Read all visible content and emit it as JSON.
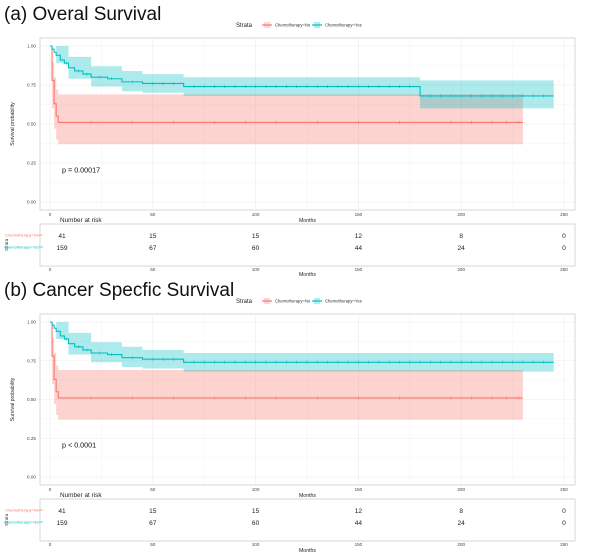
{
  "figure": {
    "panels": [
      {
        "title": "(a) Overal Survival",
        "legend_title": "Strata",
        "legend_items": [
          "Chemotherapy=No",
          "Chemotherapy=Yes"
        ],
        "ylabel": "Survival probability",
        "xlabel": "Months",
        "pvalue": "p = 0.00017",
        "risk_title": "Number at risk",
        "risk_xlabel": "Months",
        "risk_groups": [
          "Chemotherapy=No",
          "Chemotherapy=Yes"
        ],
        "risk_table": [
          [
            "41",
            "15",
            "15",
            "12",
            "8",
            "0"
          ],
          [
            "159",
            "67",
            "60",
            "44",
            "24",
            "0"
          ]
        ]
      },
      {
        "title": "(b) Cancer Specfic Survival",
        "legend_title": "Strata",
        "legend_items": [
          "Chemotherapy=No",
          "Chemotherapy=Yes"
        ],
        "ylabel": "Survival probability",
        "xlabel": "Months",
        "pvalue": "p < 0.0001",
        "risk_title": "Number at risk",
        "risk_xlabel": "Months",
        "risk_groups": [
          "Chemotherapy=No",
          "Chemotherapy=Yes"
        ],
        "risk_table": [
          [
            "41",
            "15",
            "15",
            "12",
            "8",
            "0"
          ],
          [
            "159",
            "67",
            "60",
            "44",
            "24",
            "0"
          ]
        ]
      }
    ]
  },
  "chart_data": [
    {
      "type": "line",
      "title": "(a) Overal Survival",
      "xlabel": "Months",
      "ylabel": "Survival probability",
      "xlim": [
        0,
        250
      ],
      "ylim": [
        0,
        1
      ],
      "xticks": [
        "0",
        "50",
        "100",
        "150",
        "200",
        "250"
      ],
      "yticks": [
        "0.00",
        "0.25",
        "0.50",
        "0.75",
        "1.00"
      ],
      "grid": true,
      "legend_position": "top",
      "colors": {
        "Chemotherapy=No": "#F8766D",
        "Chemotherapy=Yes": "#00BFC4"
      },
      "series": [
        {
          "name": "Chemotherapy=No",
          "step_x": [
            0,
            1,
            2,
            3,
            4,
            230
          ],
          "step_y": [
            1.0,
            0.78,
            0.63,
            0.55,
            0.51,
            0.51
          ],
          "ci_x": [
            0,
            1,
            2,
            3,
            4,
            230
          ],
          "ci_upper": [
            1.0,
            0.9,
            0.8,
            0.72,
            0.69,
            0.69
          ],
          "ci_lower": [
            1.0,
            0.6,
            0.47,
            0.4,
            0.37,
            0.37
          ],
          "censor_x": [
            20,
            40,
            60,
            80,
            95,
            110,
            130,
            150,
            170,
            195,
            205,
            215,
            222,
            228
          ]
        },
        {
          "name": "Chemotherapy=Yes",
          "step_x": [
            0,
            1,
            2,
            3,
            5,
            7,
            9,
            12,
            16,
            20,
            28,
            35,
            45,
            65,
            180,
            245
          ],
          "step_y": [
            1.0,
            0.98,
            0.96,
            0.94,
            0.91,
            0.89,
            0.86,
            0.84,
            0.82,
            0.8,
            0.79,
            0.77,
            0.76,
            0.74,
            0.68,
            0.68
          ],
          "ci_x": [
            0,
            3,
            9,
            20,
            35,
            45,
            65,
            180,
            245
          ],
          "ci_upper": [
            1.0,
            1.0,
            0.93,
            0.87,
            0.84,
            0.82,
            0.8,
            0.78,
            0.78
          ],
          "ci_lower": [
            1.0,
            0.89,
            0.79,
            0.74,
            0.71,
            0.7,
            0.68,
            0.6,
            0.6
          ],
          "censor_x": [
            8,
            14,
            18,
            24,
            30,
            40,
            50,
            55,
            60,
            70,
            75,
            80,
            85,
            90,
            95,
            100,
            105,
            110,
            115,
            120,
            125,
            130,
            135,
            140,
            145,
            150,
            155,
            160,
            165,
            170,
            175,
            185,
            190,
            195,
            200,
            205,
            210,
            215,
            220,
            225,
            230,
            235,
            240
          ]
        }
      ]
    },
    {
      "type": "line",
      "title": "(b) Cancer Specfic Survival",
      "xlabel": "Months",
      "ylabel": "Survival probability",
      "xlim": [
        0,
        250
      ],
      "ylim": [
        0,
        1
      ],
      "xticks": [
        "0",
        "50",
        "100",
        "150",
        "200",
        "250"
      ],
      "yticks": [
        "0.00",
        "0.25",
        "0.50",
        "0.75",
        "1.00"
      ],
      "grid": true,
      "legend_position": "top",
      "colors": {
        "Chemotherapy=No": "#F8766D",
        "Chemotherapy=Yes": "#00BFC4"
      },
      "series": [
        {
          "name": "Chemotherapy=No",
          "step_x": [
            0,
            1,
            2,
            3,
            4,
            230
          ],
          "step_y": [
            1.0,
            0.78,
            0.63,
            0.55,
            0.51,
            0.51
          ],
          "ci_x": [
            0,
            1,
            2,
            3,
            4,
            230
          ],
          "ci_upper": [
            1.0,
            0.9,
            0.8,
            0.72,
            0.69,
            0.69
          ],
          "ci_lower": [
            1.0,
            0.6,
            0.47,
            0.4,
            0.37,
            0.37
          ],
          "censor_x": [
            20,
            40,
            60,
            80,
            95,
            110,
            130,
            150,
            170,
            195,
            205,
            215,
            222,
            228
          ]
        },
        {
          "name": "Chemotherapy=Yes",
          "step_x": [
            0,
            1,
            2,
            3,
            5,
            7,
            9,
            12,
            16,
            20,
            28,
            35,
            45,
            65,
            245
          ],
          "step_y": [
            1.0,
            0.98,
            0.96,
            0.94,
            0.91,
            0.89,
            0.86,
            0.84,
            0.82,
            0.8,
            0.79,
            0.77,
            0.76,
            0.74,
            0.74
          ],
          "ci_x": [
            0,
            3,
            9,
            20,
            35,
            45,
            65,
            245
          ],
          "ci_upper": [
            1.0,
            1.0,
            0.93,
            0.87,
            0.84,
            0.82,
            0.8,
            0.8
          ],
          "ci_lower": [
            1.0,
            0.89,
            0.79,
            0.74,
            0.71,
            0.7,
            0.68,
            0.68
          ],
          "censor_x": [
            8,
            14,
            18,
            24,
            30,
            40,
            50,
            55,
            60,
            70,
            75,
            80,
            85,
            90,
            95,
            100,
            105,
            110,
            115,
            120,
            125,
            130,
            135,
            140,
            145,
            150,
            155,
            160,
            165,
            170,
            175,
            180,
            185,
            190,
            195,
            200,
            205,
            210,
            215,
            220,
            225,
            230,
            235,
            240
          ]
        }
      ]
    }
  ]
}
